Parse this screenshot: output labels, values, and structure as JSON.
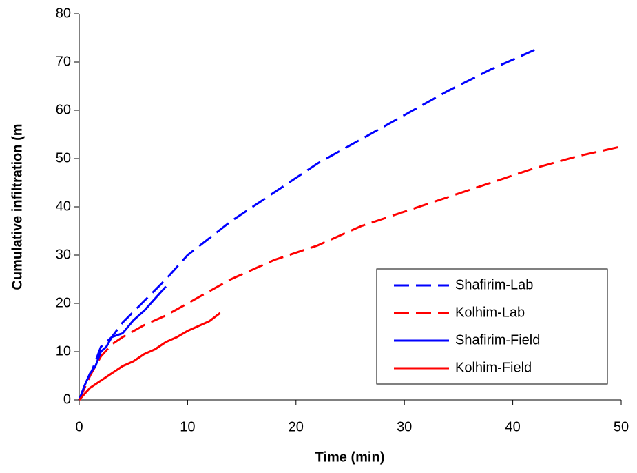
{
  "chart_data": {
    "type": "line",
    "xlabel": "Time (min)",
    "ylabel": "Cumulative infiltration (m",
    "xlim": [
      0,
      50
    ],
    "xticks": [
      0,
      10,
      20,
      30,
      40,
      50
    ],
    "ylim": [
      0,
      80
    ],
    "yticks": [
      0,
      10,
      20,
      30,
      40,
      50,
      60,
      70,
      80
    ],
    "grid": false,
    "legend": "lower right",
    "series": [
      {
        "name": "Shafirim-Lab",
        "color": "#0000ff",
        "line_style": "dashed",
        "x": [
          0,
          1,
          2,
          3,
          4,
          6,
          8,
          10,
          14,
          18,
          22,
          26,
          30,
          34,
          38,
          42
        ],
        "values": [
          0,
          5,
          11,
          13,
          16,
          20.5,
          25,
          30,
          37,
          43,
          49,
          54,
          59,
          64,
          68.5,
          72.5
        ]
      },
      {
        "name": "Kolhim-Lab",
        "color": "#ff0000",
        "line_style": "dashed",
        "x": [
          0,
          1,
          2,
          3,
          4,
          6,
          8,
          10,
          14,
          18,
          22,
          26,
          30,
          34,
          38,
          42,
          46,
          50
        ],
        "values": [
          0,
          5,
          9,
          11.5,
          13,
          15.5,
          17.5,
          20,
          25,
          29,
          32,
          36,
          39,
          42,
          45,
          48,
          50.5,
          52.5
        ]
      },
      {
        "name": "Shafirim-Field",
        "color": "#0000ff",
        "line_style": "solid",
        "x": [
          0,
          0.5,
          1,
          1.5,
          2,
          2.5,
          3,
          4,
          5,
          6,
          7,
          8
        ],
        "values": [
          0,
          3,
          5.5,
          7,
          10,
          11,
          13,
          13.8,
          16.5,
          18.5,
          21,
          23.5
        ]
      },
      {
        "name": "Kolhim-Field",
        "color": "#ff0000",
        "line_style": "solid",
        "x": [
          0,
          1,
          2,
          3,
          4,
          5,
          6,
          7,
          8,
          9,
          10,
          11,
          12,
          13
        ],
        "values": [
          0,
          2.5,
          4,
          5.5,
          7,
          8,
          9.5,
          10.5,
          12,
          13,
          14.3,
          15.3,
          16.3,
          18
        ]
      }
    ]
  }
}
